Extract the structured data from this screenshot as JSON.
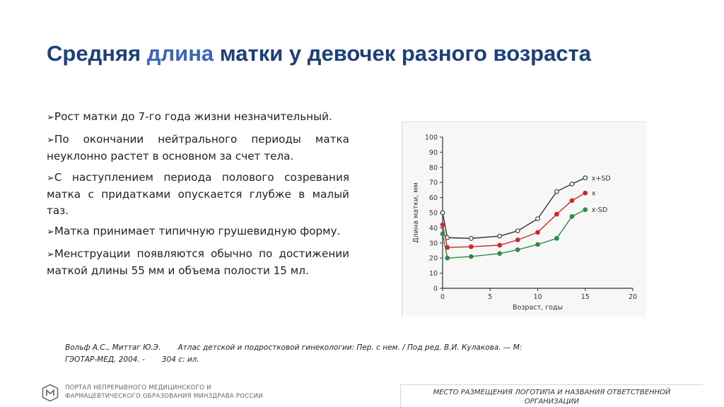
{
  "title": {
    "part1": "Средняя ",
    "highlight": "длина",
    "part2": " матки у девочек разного возраста"
  },
  "bullet_marker": "➢",
  "bullets": [
    "Рост матки до 7-го года жизни незначительный.",
    "По окончании нейтрального периоды матка неуклонно растет в основном за счет тела.",
    "С наступлением периода полового созревания матка с придатками опускается глубже в малый таз.",
    "Матка принимает типичную грушевидную форму.",
    "Менструации появляются обычно по достижении маткой длины 55 мм и объема полости 15 мл."
  ],
  "chart_data": {
    "type": "line",
    "xlabel": "Возраст, годы",
    "ylabel": "Длина матки, мм",
    "xlim": [
      0,
      20
    ],
    "ylim": [
      0,
      100
    ],
    "xticks": [
      0,
      5,
      10,
      15,
      20
    ],
    "yticks": [
      0,
      10,
      20,
      30,
      40,
      50,
      60,
      70,
      80,
      90,
      100
    ],
    "grid": false,
    "legend": "right",
    "colors": {
      "x+SD": "#333333",
      "x": "#cc2a2a",
      "x-SD": "#2e8b46"
    },
    "series": [
      {
        "name": "x+SD",
        "marker": "open",
        "x": [
          0,
          0.5,
          3,
          6,
          7.9,
          10,
          12,
          13.6,
          15
        ],
        "y": [
          50,
          33.5,
          33,
          34.5,
          38,
          46,
          64,
          69,
          73
        ]
      },
      {
        "name": "x",
        "marker": "filled",
        "x": [
          0,
          0.5,
          3,
          6,
          7.9,
          10,
          12,
          13.6,
          15
        ],
        "y": [
          42,
          27,
          27.5,
          28.5,
          32,
          37,
          49,
          58,
          63
        ]
      },
      {
        "name": "x-SD",
        "marker": "filled",
        "x": [
          0,
          0.5,
          3,
          6,
          7.9,
          10,
          12,
          13.6,
          15
        ],
        "y": [
          36,
          20,
          21,
          23,
          25.5,
          29,
          33,
          47.5,
          52
        ]
      }
    ]
  },
  "citation": {
    "authors": "Вольф А.С., Миттаг Ю.Э.",
    "text": "Атлас детской и подростковой гинекологии: Пер. с нем. / Под ред. В.И. Кулакова. — М:",
    "line2a": "ГЭОТАР-МЕД, 2004. -",
    "line2b": "304 с: ил."
  },
  "footer": {
    "portal_line1": "ПОРТАЛ НЕПРЕРЫВНОГО МЕДИЦИНСКОГО И",
    "portal_line2": "ФАРМАЦЕВТИЧЕСКОГО ОБРАЗОВАНИЯ МИНЗДРАВА РОССИИ",
    "logo_place_line1": "МЕСТО РАЗМЕЩЕНИЯ ЛОГОТИПА И НАЗВАНИЯ ОТВЕТСТВЕННОЙ",
    "logo_place_line2": "ОРГАНИЗАЦИИ"
  },
  "icons": {
    "portal_logo": "portal-emblem-icon"
  }
}
